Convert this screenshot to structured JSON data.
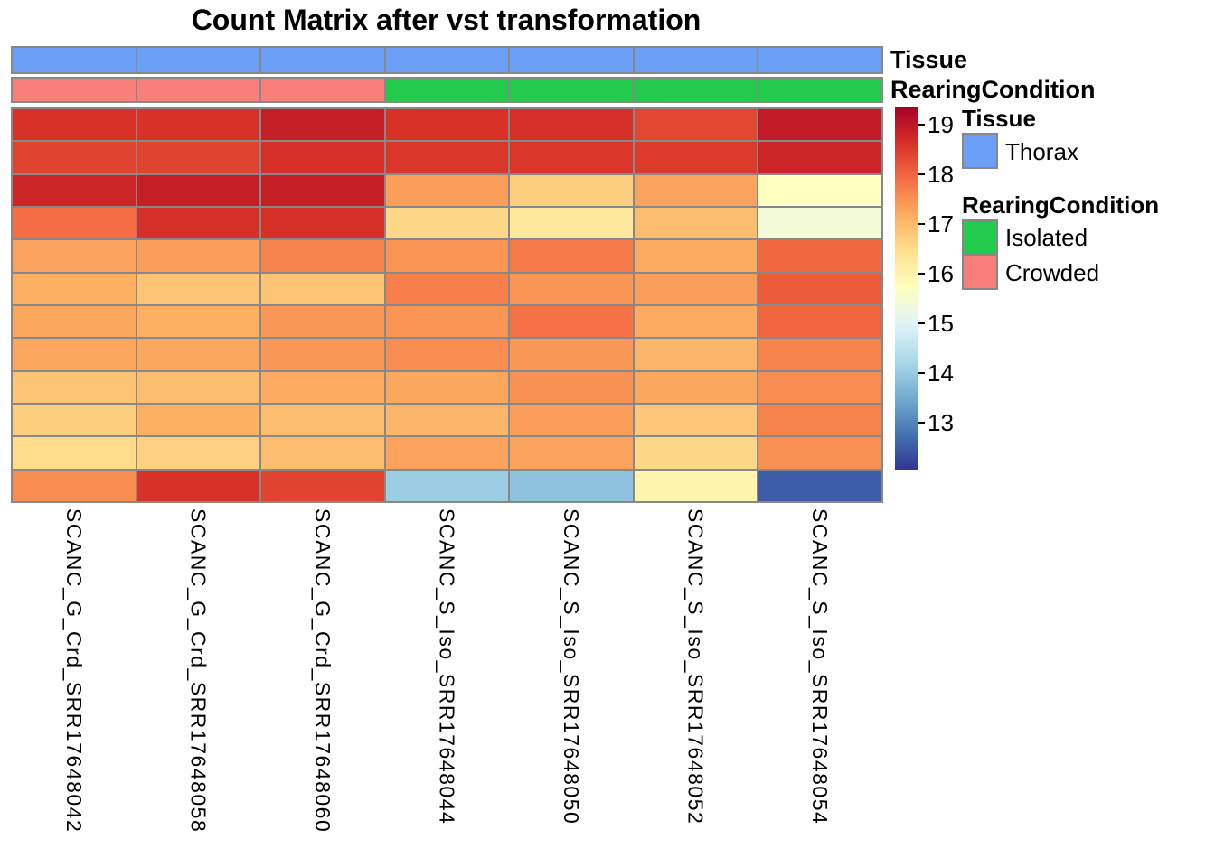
{
  "title": "Count Matrix after vst transformation",
  "annotation_rows": [
    {
      "name": "Tissue",
      "values": [
        "Thorax",
        "Thorax",
        "Thorax",
        "Thorax",
        "Thorax",
        "Thorax",
        "Thorax"
      ],
      "color_map": {
        "Thorax": "#6B9FF7"
      }
    },
    {
      "name": "RearingCondition",
      "values": [
        "Crowded",
        "Crowded",
        "Crowded",
        "Isolated",
        "Isolated",
        "Isolated",
        "Isolated"
      ],
      "color_map": {
        "Isolated": "#23CB4D",
        "Crowded": "#F9807A"
      }
    }
  ],
  "chart_data": {
    "type": "heatmap",
    "title": "Count Matrix after vst transformation",
    "columns": [
      "SCANC_G_Crd_SRR17648042",
      "SCANC_G_Crd_SRR17648058",
      "SCANC_G_Crd_SRR17648060",
      "SCANC_S_Iso_SRR17648044",
      "SCANC_S_Iso_SRR17648050",
      "SCANC_S_Iso_SRR17648052",
      "SCANC_S_Iso_SRR17648054"
    ],
    "row_labels_shown": false,
    "n_rows": 12,
    "values": [
      [
        18.6,
        18.6,
        18.9,
        18.6,
        18.65,
        18.35,
        18.95
      ],
      [
        18.4,
        18.4,
        18.65,
        18.55,
        18.55,
        18.5,
        18.8
      ],
      [
        18.8,
        18.9,
        18.9,
        17.35,
        16.7,
        17.3,
        15.7
      ],
      [
        17.9,
        18.65,
        18.65,
        16.55,
        16.25,
        16.95,
        15.4
      ],
      [
        17.3,
        17.35,
        17.65,
        17.45,
        17.75,
        17.2,
        17.95
      ],
      [
        17.15,
        16.85,
        16.85,
        17.7,
        17.45,
        17.35,
        18.1
      ],
      [
        17.25,
        17.15,
        17.4,
        17.45,
        17.85,
        17.2,
        18.0
      ],
      [
        17.25,
        17.25,
        17.4,
        17.55,
        17.4,
        17.05,
        17.65
      ],
      [
        16.85,
        16.95,
        17.2,
        17.25,
        17.5,
        17.25,
        17.55
      ],
      [
        16.7,
        17.15,
        16.95,
        17.05,
        17.35,
        16.8,
        17.65
      ],
      [
        16.5,
        16.65,
        16.95,
        17.3,
        17.3,
        16.55,
        17.5
      ],
      [
        17.55,
        18.6,
        18.4,
        14.05,
        13.85,
        15.95,
        12.5
      ]
    ],
    "color_scale": {
      "palette": [
        "#313695",
        "#4575B4",
        "#74ADD1",
        "#ABD9E9",
        "#E0F3F8",
        "#FFFFBF",
        "#FEE090",
        "#FDAE61",
        "#F46D43",
        "#D73027",
        "#A50026"
      ],
      "domain": [
        12.05,
        19.36
      ],
      "legend_ticks": [
        19,
        18,
        17,
        16,
        15,
        14,
        13
      ]
    },
    "column_annotations": {
      "Tissue": [
        "Thorax",
        "Thorax",
        "Thorax",
        "Thorax",
        "Thorax",
        "Thorax",
        "Thorax"
      ],
      "RearingCondition": [
        "Crowded",
        "Crowded",
        "Crowded",
        "Isolated",
        "Isolated",
        "Isolated",
        "Isolated"
      ]
    }
  },
  "legend": {
    "tissue_header": "Tissue",
    "tissue_items": [
      {
        "label": "Thorax",
        "color": "#6B9FF7"
      }
    ],
    "rearing_header": "RearingCondition",
    "rearing_items": [
      {
        "label": "Isolated",
        "color": "#23CB4D"
      },
      {
        "label": "Crowded",
        "color": "#F9807A"
      }
    ]
  },
  "colors": {
    "border": "#888888",
    "background": "#FFFFFF",
    "text": "#000000"
  }
}
